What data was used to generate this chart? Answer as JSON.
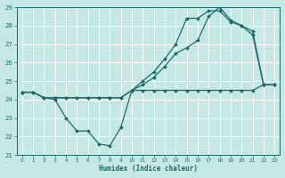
{
  "xlabel": "Humidex (Indice chaleur)",
  "xlim": [
    -0.5,
    23.5
  ],
  "ylim": [
    21,
    29
  ],
  "xticks": [
    0,
    1,
    2,
    3,
    4,
    5,
    6,
    7,
    8,
    9,
    10,
    11,
    12,
    13,
    14,
    15,
    16,
    17,
    18,
    19,
    20,
    21,
    22,
    23
  ],
  "yticks": [
    21,
    22,
    23,
    24,
    25,
    26,
    27,
    28,
    29
  ],
  "bg_color": "#c5e8e5",
  "line_color": "#1a6b6b",
  "grid_color": "#ffffff",
  "max_y": [
    24.4,
    24.4,
    24.1,
    24.1,
    24.1,
    24.1,
    24.1,
    24.1,
    24.1,
    24.1,
    24.5,
    25.0,
    25.5,
    26.2,
    27.0,
    28.4,
    28.4,
    28.8,
    28.8,
    28.2,
    28.0,
    27.7,
    24.8,
    24.8
  ],
  "mean_y": [
    24.4,
    24.4,
    24.1,
    24.1,
    24.1,
    24.1,
    24.1,
    24.1,
    24.1,
    24.1,
    24.5,
    24.8,
    25.2,
    25.8,
    26.5,
    26.8,
    27.2,
    28.5,
    29.0,
    28.3,
    28.0,
    27.5,
    24.8,
    24.8
  ],
  "min_y": [
    24.4,
    24.4,
    24.1,
    24.0,
    23.0,
    22.3,
    22.3,
    21.6,
    21.5,
    22.5,
    24.5,
    24.5,
    24.5,
    24.5,
    24.5,
    24.5,
    24.5,
    24.5,
    24.5,
    24.5,
    24.5,
    24.5,
    24.8,
    24.8
  ]
}
